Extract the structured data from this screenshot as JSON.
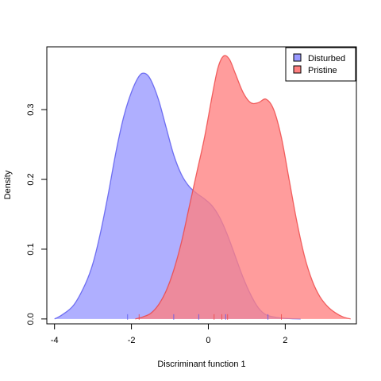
{
  "chart_data": {
    "type": "area",
    "xlabel": "Discriminant function 1",
    "ylabel": "Density",
    "xlim": [
      -4.2,
      3.85
    ],
    "ylim": [
      -0.007,
      0.39
    ],
    "x_ticks": [
      -4,
      -2,
      0,
      2
    ],
    "x_tick_labels": [
      "-4",
      "-2",
      "0",
      "2"
    ],
    "y_ticks": [
      0.0,
      0.1,
      0.2,
      0.3
    ],
    "y_tick_labels": [
      "0.0",
      "0.1",
      "0.2",
      "0.3"
    ],
    "legend_position": "top-right",
    "series": [
      {
        "name": "Disturbed",
        "fill": "#9999ff",
        "stroke": "#5555ee",
        "swatch": "#9999ff",
        "points": [
          [
            -4.0,
            0.0
          ],
          [
            -3.8,
            0.006
          ],
          [
            -3.5,
            0.02
          ],
          [
            -3.2,
            0.05
          ],
          [
            -3.0,
            0.08
          ],
          [
            -2.8,
            0.125
          ],
          [
            -2.6,
            0.18
          ],
          [
            -2.4,
            0.24
          ],
          [
            -2.2,
            0.29
          ],
          [
            -2.0,
            0.325
          ],
          [
            -1.8,
            0.348
          ],
          [
            -1.65,
            0.352
          ],
          [
            -1.5,
            0.343
          ],
          [
            -1.3,
            0.315
          ],
          [
            -1.1,
            0.275
          ],
          [
            -0.9,
            0.235
          ],
          [
            -0.7,
            0.207
          ],
          [
            -0.5,
            0.19
          ],
          [
            -0.3,
            0.18
          ],
          [
            -0.1,
            0.172
          ],
          [
            0.1,
            0.162
          ],
          [
            0.3,
            0.145
          ],
          [
            0.5,
            0.12
          ],
          [
            0.7,
            0.09
          ],
          [
            0.9,
            0.06
          ],
          [
            1.1,
            0.035
          ],
          [
            1.3,
            0.016
          ],
          [
            1.5,
            0.006
          ],
          [
            1.8,
            0.002
          ],
          [
            2.1,
            0.0005
          ],
          [
            2.4,
            0.0
          ]
        ],
        "rug": [
          -2.1,
          -0.9,
          -0.25,
          0.45,
          1.55
        ]
      },
      {
        "name": "Pristine",
        "fill": "#ff8080",
        "stroke": "#ee4444",
        "swatch": "#ff8080",
        "points": [
          [
            -1.9,
            0.0
          ],
          [
            -1.7,
            0.003
          ],
          [
            -1.5,
            0.008
          ],
          [
            -1.3,
            0.02
          ],
          [
            -1.1,
            0.04
          ],
          [
            -0.9,
            0.07
          ],
          [
            -0.7,
            0.11
          ],
          [
            -0.5,
            0.16
          ],
          [
            -0.3,
            0.21
          ],
          [
            -0.1,
            0.26
          ],
          [
            0.1,
            0.32
          ],
          [
            0.25,
            0.36
          ],
          [
            0.4,
            0.377
          ],
          [
            0.55,
            0.372
          ],
          [
            0.7,
            0.352
          ],
          [
            0.9,
            0.325
          ],
          [
            1.1,
            0.31
          ],
          [
            1.3,
            0.31
          ],
          [
            1.5,
            0.315
          ],
          [
            1.7,
            0.3
          ],
          [
            1.9,
            0.26
          ],
          [
            2.1,
            0.2
          ],
          [
            2.3,
            0.14
          ],
          [
            2.5,
            0.09
          ],
          [
            2.7,
            0.055
          ],
          [
            2.9,
            0.032
          ],
          [
            3.1,
            0.018
          ],
          [
            3.3,
            0.009
          ],
          [
            3.5,
            0.003
          ],
          [
            3.7,
            0.0
          ]
        ],
        "rug": [
          -1.8,
          0.15,
          0.35,
          0.5,
          1.9
        ]
      }
    ]
  }
}
